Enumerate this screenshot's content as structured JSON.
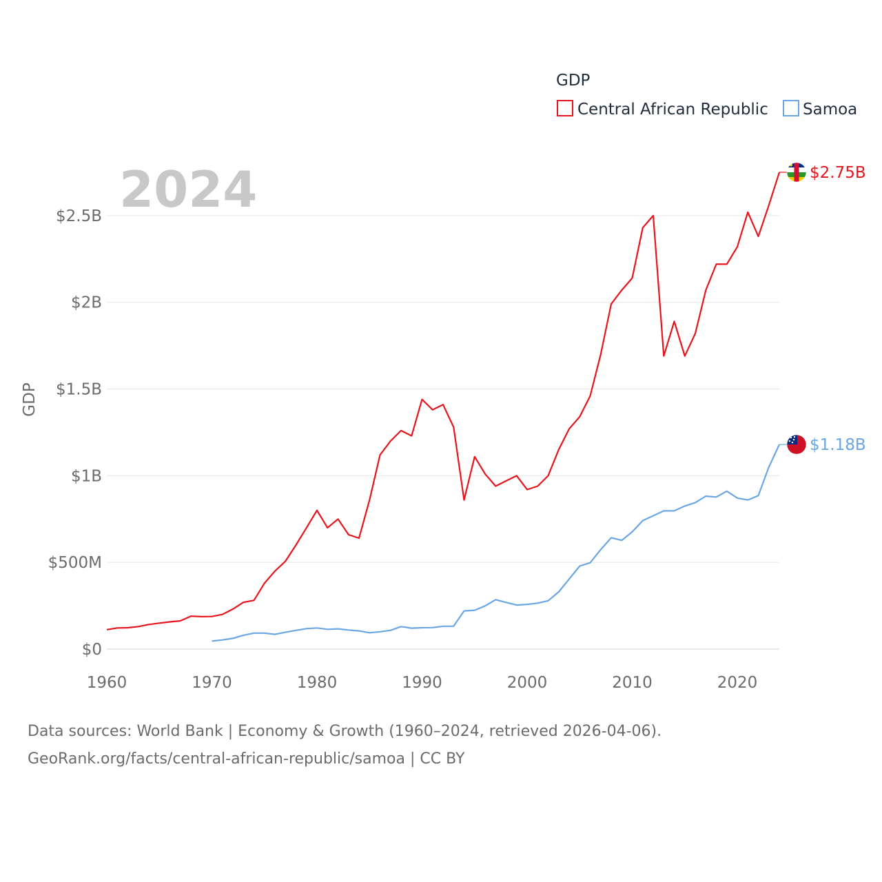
{
  "chart_data": {
    "type": "line",
    "year_label": "2024",
    "ylabel": "GDP",
    "xlabel": "",
    "xlim": [
      1960,
      2024
    ],
    "ylim": [
      0,
      2.75
    ],
    "y_unit": "billions USD",
    "x_ticks": [
      1960,
      1970,
      1980,
      1990,
      2000,
      2010,
      2020
    ],
    "x_tick_labels": [
      "1960",
      "1970",
      "1980",
      "1990",
      "2000",
      "2010",
      "2020"
    ],
    "y_ticks": [
      0,
      0.5,
      1,
      1.5,
      2,
      2.5
    ],
    "y_tick_labels": [
      "$0",
      "$500M",
      "$1B",
      "$1.5B",
      "$2B",
      "$2.5B"
    ],
    "grid": true,
    "legend": {
      "title": "GDP",
      "position": "top-right",
      "entries": [
        "Central African Republic",
        "Samoa"
      ]
    },
    "series": [
      {
        "name": "Central African Republic",
        "color": "#e8141c",
        "end_label": "$2.75B",
        "flag": "central-african-republic-flag-icon",
        "x": [
          1960,
          1961,
          1962,
          1963,
          1964,
          1965,
          1966,
          1967,
          1968,
          1969,
          1970,
          1971,
          1972,
          1973,
          1974,
          1975,
          1976,
          1977,
          1978,
          1979,
          1980,
          1981,
          1982,
          1983,
          1984,
          1985,
          1986,
          1987,
          1988,
          1989,
          1990,
          1991,
          1992,
          1993,
          1994,
          1995,
          1996,
          1997,
          1998,
          1999,
          2000,
          2001,
          2002,
          2003,
          2004,
          2005,
          2006,
          2007,
          2008,
          2009,
          2010,
          2011,
          2012,
          2013,
          2014,
          2015,
          2016,
          2017,
          2018,
          2019,
          2020,
          2021,
          2022,
          2023,
          2024
        ],
        "values": [
          0.112,
          0.122,
          0.123,
          0.13,
          0.142,
          0.15,
          0.157,
          0.163,
          0.19,
          0.187,
          0.188,
          0.2,
          0.231,
          0.27,
          0.281,
          0.38,
          0.45,
          0.507,
          0.6,
          0.7,
          0.8,
          0.7,
          0.75,
          0.66,
          0.64,
          0.86,
          1.12,
          1.2,
          1.26,
          1.23,
          1.44,
          1.38,
          1.41,
          1.28,
          0.86,
          1.11,
          1.01,
          0.94,
          0.97,
          1.0,
          0.92,
          0.94,
          1.0,
          1.15,
          1.27,
          1.34,
          1.46,
          1.7,
          1.99,
          2.07,
          2.14,
          2.43,
          2.5,
          1.69,
          1.89,
          1.69,
          1.82,
          2.07,
          2.22,
          2.22,
          2.32,
          2.52,
          2.38,
          2.56,
          2.75
        ]
      },
      {
        "name": "Samoa",
        "color": "#6aa6e4",
        "end_label": "$1.18B",
        "flag": "samoa-flag-icon",
        "x": [
          1970,
          1971,
          1972,
          1973,
          1974,
          1975,
          1976,
          1977,
          1978,
          1979,
          1980,
          1981,
          1982,
          1983,
          1984,
          1985,
          1986,
          1987,
          1988,
          1989,
          1990,
          1991,
          1992,
          1993,
          1994,
          1995,
          1996,
          1997,
          1998,
          1999,
          2000,
          2001,
          2002,
          2003,
          2004,
          2005,
          2006,
          2007,
          2008,
          2009,
          2010,
          2011,
          2012,
          2013,
          2014,
          2015,
          2016,
          2017,
          2018,
          2019,
          2020,
          2021,
          2022,
          2023,
          2024
        ],
        "values": [
          0.046,
          0.053,
          0.062,
          0.08,
          0.092,
          0.092,
          0.085,
          0.097,
          0.108,
          0.118,
          0.122,
          0.114,
          0.117,
          0.11,
          0.105,
          0.094,
          0.1,
          0.108,
          0.13,
          0.121,
          0.123,
          0.124,
          0.132,
          0.132,
          0.22,
          0.224,
          0.249,
          0.285,
          0.269,
          0.254,
          0.258,
          0.265,
          0.279,
          0.33,
          0.404,
          0.479,
          0.498,
          0.574,
          0.642,
          0.627,
          0.676,
          0.741,
          0.769,
          0.797,
          0.797,
          0.825,
          0.845,
          0.882,
          0.877,
          0.911,
          0.871,
          0.86,
          0.885,
          1.05,
          1.18
        ]
      }
    ]
  },
  "footer": {
    "sources_line": "Data sources: World Bank | Economy & Growth (1960–2024, retrieved 2026-04-06).",
    "url_line": "GeoRank.org/facts/central-african-republic/samoa | CC BY"
  }
}
